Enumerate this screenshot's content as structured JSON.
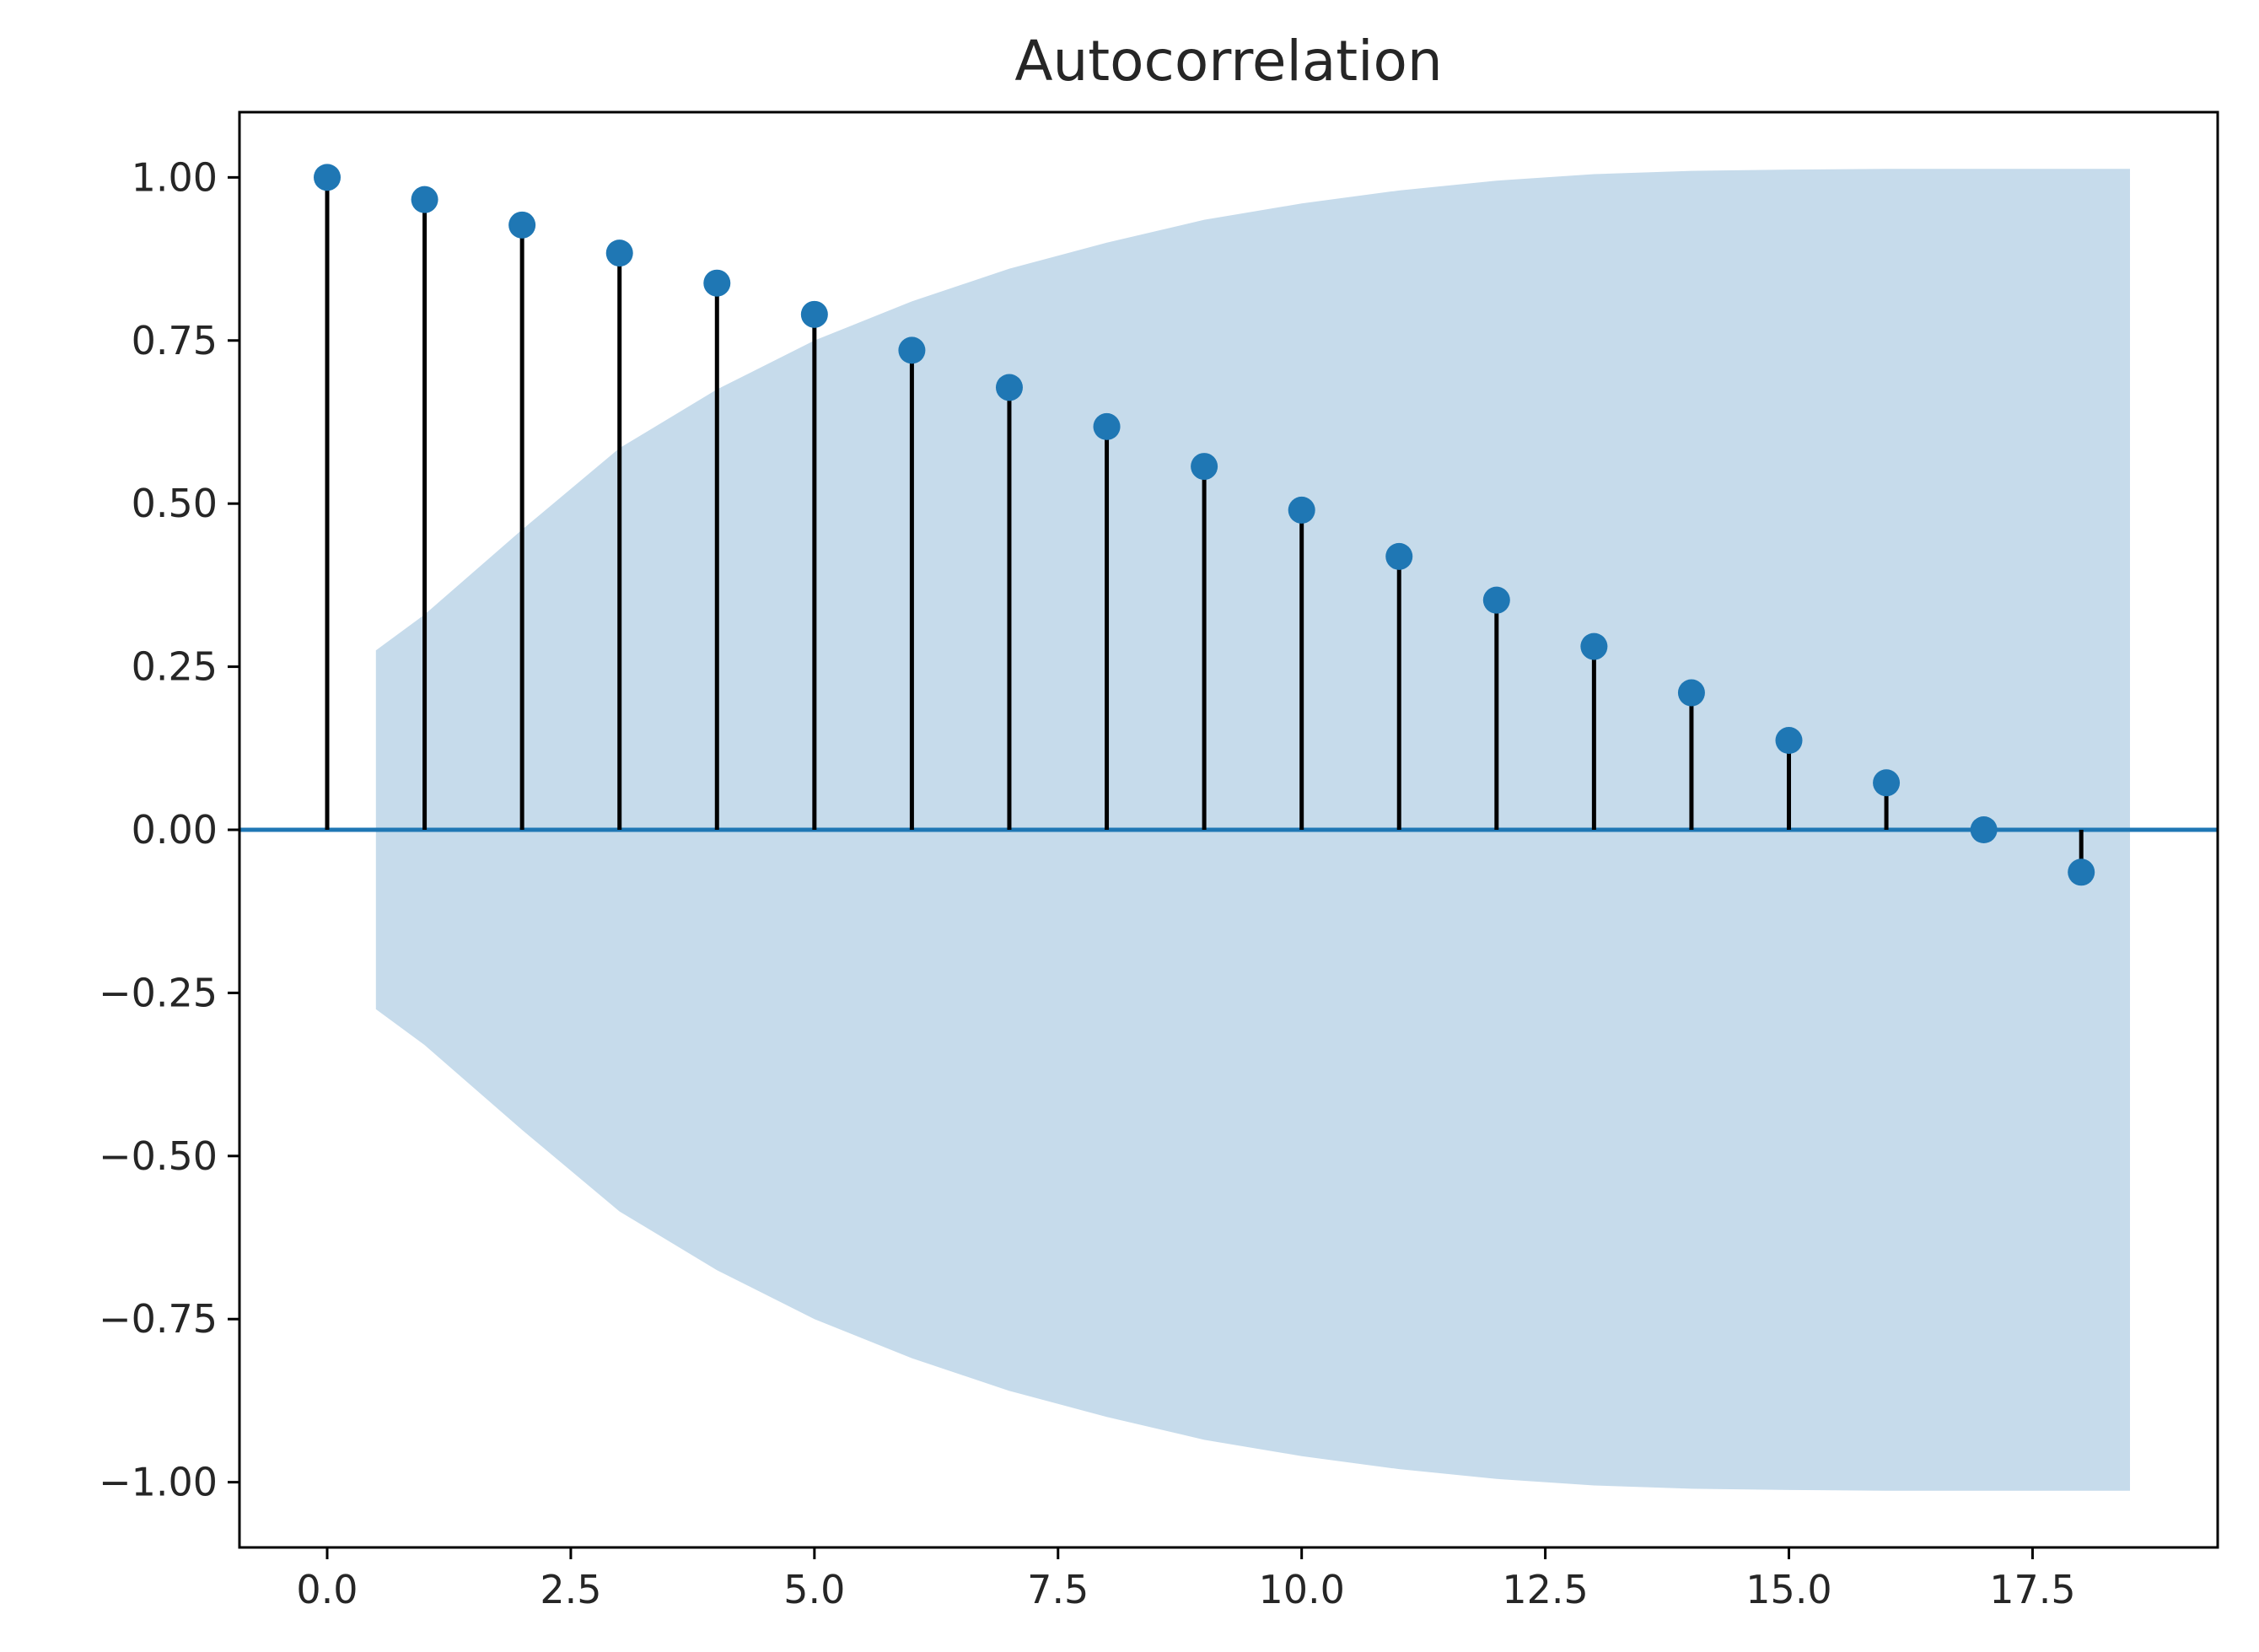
{
  "chart_data": {
    "type": "stem",
    "title": "Autocorrelation",
    "xlabel": "",
    "ylabel": "",
    "xlim": [
      -0.9,
      19.4
    ],
    "ylim": [
      -1.1,
      1.1
    ],
    "x_ticks": [
      0.0,
      2.5,
      5.0,
      7.5,
      10.0,
      12.5,
      15.0,
      17.5
    ],
    "x_tick_labels": [
      "0.0",
      "2.5",
      "5.0",
      "7.5",
      "10.0",
      "12.5",
      "15.0",
      "17.5"
    ],
    "y_ticks": [
      1.0,
      0.75,
      0.5,
      0.25,
      0.0,
      -0.25,
      -0.5,
      -0.75,
      -1.0
    ],
    "y_tick_labels": [
      "1.00",
      "0.75",
      "0.50",
      "0.25",
      "0.00",
      "−0.25",
      "−0.50",
      "−0.75",
      "−1.00"
    ],
    "lags": [
      0,
      1,
      2,
      3,
      4,
      5,
      6,
      7,
      8,
      9,
      10,
      11,
      12,
      13,
      14,
      15,
      16,
      17,
      18
    ],
    "values": [
      1.0,
      0.966,
      0.927,
      0.884,
      0.838,
      0.79,
      0.735,
      0.678,
      0.618,
      0.557,
      0.49,
      0.419,
      0.352,
      0.281,
      0.21,
      0.137,
      0.072,
      0.0,
      -0.065
    ],
    "confidence_band": {
      "x": [
        0.5,
        1,
        2,
        3,
        4,
        5,
        6,
        7,
        8,
        9,
        10,
        11,
        12,
        13,
        14,
        15,
        16,
        17,
        18,
        18.5
      ],
      "upper": [
        0.275,
        0.33,
        0.46,
        0.585,
        0.675,
        0.75,
        0.81,
        0.86,
        0.9,
        0.935,
        0.96,
        0.98,
        0.995,
        1.005,
        1.01,
        1.012,
        1.013,
        1.013,
        1.013,
        1.013
      ],
      "lower": [
        -0.275,
        -0.33,
        -0.46,
        -0.585,
        -0.675,
        -0.75,
        -0.81,
        -0.86,
        -0.9,
        -0.935,
        -0.96,
        -0.98,
        -0.995,
        -1.005,
        -1.01,
        -1.012,
        -1.013,
        -1.013,
        -1.013,
        -1.013
      ]
    },
    "grid": false,
    "colors": {
      "marker": "#1f77b4",
      "stem": "#000000",
      "zero_line": "#1f77b4",
      "band": "#c6dbeb",
      "axis": "#000000",
      "text": "#262626"
    }
  }
}
